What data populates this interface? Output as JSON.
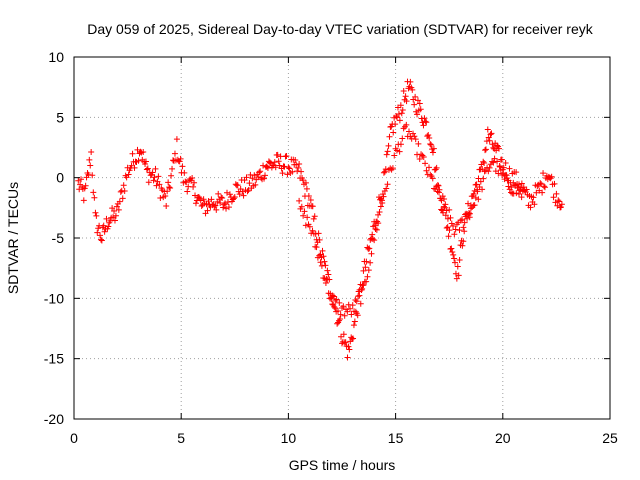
{
  "chart_data": {
    "type": "scatter",
    "title": "Day 059 of 2025, Sidereal Day-to-day VTEC variation (SDTVAR) for receiver reyk",
    "xlabel": "GPS time / hours",
    "ylabel": "SDTVAR / TECUs",
    "xlim": [
      0,
      25
    ],
    "ylim": [
      -20,
      10
    ],
    "xticks": [
      "0",
      "5",
      "10",
      "15",
      "20",
      "25"
    ],
    "yticks": [
      "-20",
      "-15",
      "-10",
      "-5",
      "0",
      "5",
      "10"
    ],
    "grid": true,
    "marker": "+",
    "color": "#ff0000",
    "series": [
      {
        "name": "SDTVAR",
        "trend_points": [
          [
            0.2,
            -0.5
          ],
          [
            0.5,
            -1.5
          ],
          [
            0.8,
            2.0
          ],
          [
            1.0,
            -3.5
          ],
          [
            1.3,
            -5.0
          ],
          [
            1.6,
            -3.5
          ],
          [
            2.0,
            -3.0
          ],
          [
            2.5,
            0.5
          ],
          [
            3.1,
            2.5
          ],
          [
            3.4,
            0.5
          ],
          [
            3.8,
            0.0
          ],
          [
            4.3,
            -2.0
          ],
          [
            4.8,
            2.5
          ],
          [
            5.1,
            0.0
          ],
          [
            5.6,
            -1.0
          ],
          [
            6.0,
            -2.5
          ],
          [
            6.5,
            -2.0
          ],
          [
            7.0,
            -2.2
          ],
          [
            7.5,
            -1.0
          ],
          [
            8.0,
            -0.8
          ],
          [
            8.5,
            -0.2
          ],
          [
            9.0,
            1.0
          ],
          [
            9.5,
            1.2
          ],
          [
            10.0,
            1.0
          ],
          [
            10.5,
            0.5
          ],
          [
            11.0,
            -2.0
          ],
          [
            11.5,
            -6.0
          ],
          [
            12.0,
            -9.5
          ],
          [
            12.5,
            -13.0
          ],
          [
            12.8,
            -14.5
          ],
          [
            13.1,
            -12.0
          ],
          [
            13.5,
            -8.0
          ],
          [
            14.0,
            -4.0
          ],
          [
            14.5,
            0.0
          ],
          [
            14.8,
            4.0
          ],
          [
            15.2,
            5.5
          ],
          [
            15.6,
            7.5
          ],
          [
            16.0,
            6.0
          ],
          [
            16.3,
            5.0
          ],
          [
            16.7,
            3.0
          ],
          [
            17.0,
            -1.0
          ],
          [
            17.3,
            -3.0
          ],
          [
            17.6,
            -5.5
          ],
          [
            17.9,
            -8.0
          ],
          [
            18.2,
            -4.0
          ],
          [
            18.6,
            -1.5
          ],
          [
            19.0,
            0.5
          ],
          [
            19.3,
            3.5
          ],
          [
            19.6,
            2.5
          ],
          [
            20.0,
            1.0
          ],
          [
            20.4,
            0.0
          ],
          [
            20.8,
            -0.5
          ],
          [
            21.2,
            -2.0
          ],
          [
            21.7,
            -1.0
          ],
          [
            22.1,
            0.5
          ],
          [
            22.5,
            -1.5
          ],
          [
            22.8,
            -2.0
          ]
        ],
        "secondary_points": [
          [
            10.5,
            -2.5
          ],
          [
            11.0,
            -4.0
          ],
          [
            11.5,
            -7.0
          ],
          [
            12.0,
            -10.0
          ],
          [
            12.5,
            -11.0
          ],
          [
            13.0,
            -11.0
          ],
          [
            13.5,
            -9.5
          ],
          [
            14.0,
            -5.0
          ],
          [
            14.5,
            -1.0
          ],
          [
            15.0,
            2.0
          ],
          [
            15.5,
            4.0
          ],
          [
            16.0,
            2.5
          ],
          [
            16.5,
            0.5
          ],
          [
            17.2,
            -2.0
          ],
          [
            17.8,
            -4.5
          ],
          [
            18.4,
            -3.0
          ],
          [
            18.8,
            -1.5
          ],
          [
            19.5,
            1.5
          ],
          [
            20.2,
            -0.5
          ],
          [
            21.0,
            -1.5
          ]
        ]
      }
    ]
  }
}
